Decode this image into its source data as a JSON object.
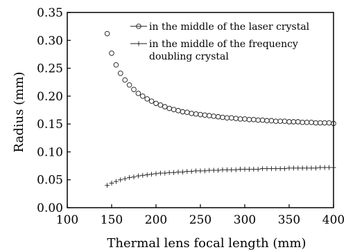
{
  "chart_data": {
    "type": "scatter",
    "title": "",
    "xlabel": "Thermal lens focal length (mm)",
    "ylabel": "Radius (mm)",
    "xlim": [
      100,
      400
    ],
    "ylim": [
      0.0,
      0.35
    ],
    "xticks": [
      "100",
      "150",
      "200",
      "250",
      "300",
      "350",
      "400"
    ],
    "yticks": [
      "0.00",
      "0.05",
      "0.10",
      "0.15",
      "0.20",
      "0.25",
      "0.30",
      "0.35"
    ],
    "grid": false,
    "legend_position": "top-right",
    "x": [
      145,
      150,
      155,
      160,
      165,
      170,
      175,
      180,
      185,
      190,
      195,
      200,
      205,
      210,
      215,
      220,
      225,
      230,
      235,
      240,
      245,
      250,
      255,
      260,
      265,
      270,
      275,
      280,
      285,
      290,
      295,
      300,
      305,
      310,
      315,
      320,
      325,
      330,
      335,
      340,
      345,
      350,
      355,
      360,
      365,
      370,
      375,
      380,
      385,
      390,
      395,
      400
    ],
    "series": [
      {
        "name": "in the middle of the laser crystal",
        "marker": "circle",
        "values": [
          0.312,
          0.277,
          0.256,
          0.241,
          0.229,
          0.22,
          0.212,
          0.205,
          0.2,
          0.195,
          0.191,
          0.187,
          0.184,
          0.181,
          0.178,
          0.176,
          0.174,
          0.172,
          0.171,
          0.169,
          0.168,
          0.167,
          0.166,
          0.165,
          0.164,
          0.163,
          0.162,
          0.161,
          0.161,
          0.16,
          0.159,
          0.159,
          0.158,
          0.158,
          0.157,
          0.157,
          0.156,
          0.156,
          0.155,
          0.155,
          0.155,
          0.154,
          0.154,
          0.154,
          0.153,
          0.153,
          0.153,
          0.152,
          0.152,
          0.152,
          0.152,
          0.151
        ]
      },
      {
        "name": "in the middle of the frequency doubling crystal",
        "legend_lines": [
          "in the middle of the frequency",
          "doubling crystal"
        ],
        "marker": "plus",
        "values": [
          0.04,
          0.044,
          0.047,
          0.05,
          0.052,
          0.054,
          0.055,
          0.057,
          0.058,
          0.059,
          0.06,
          0.061,
          0.062,
          0.062,
          0.063,
          0.063,
          0.064,
          0.064,
          0.065,
          0.065,
          0.066,
          0.066,
          0.066,
          0.067,
          0.067,
          0.067,
          0.068,
          0.068,
          0.068,
          0.068,
          0.069,
          0.069,
          0.069,
          0.069,
          0.069,
          0.07,
          0.07,
          0.07,
          0.07,
          0.07,
          0.07,
          0.071,
          0.071,
          0.071,
          0.071,
          0.071,
          0.071,
          0.071,
          0.072,
          0.072,
          0.072,
          0.072
        ]
      }
    ],
    "colors": {
      "axis": "#000000",
      "marker": "#1a1a1a",
      "background": "#ffffff"
    }
  }
}
